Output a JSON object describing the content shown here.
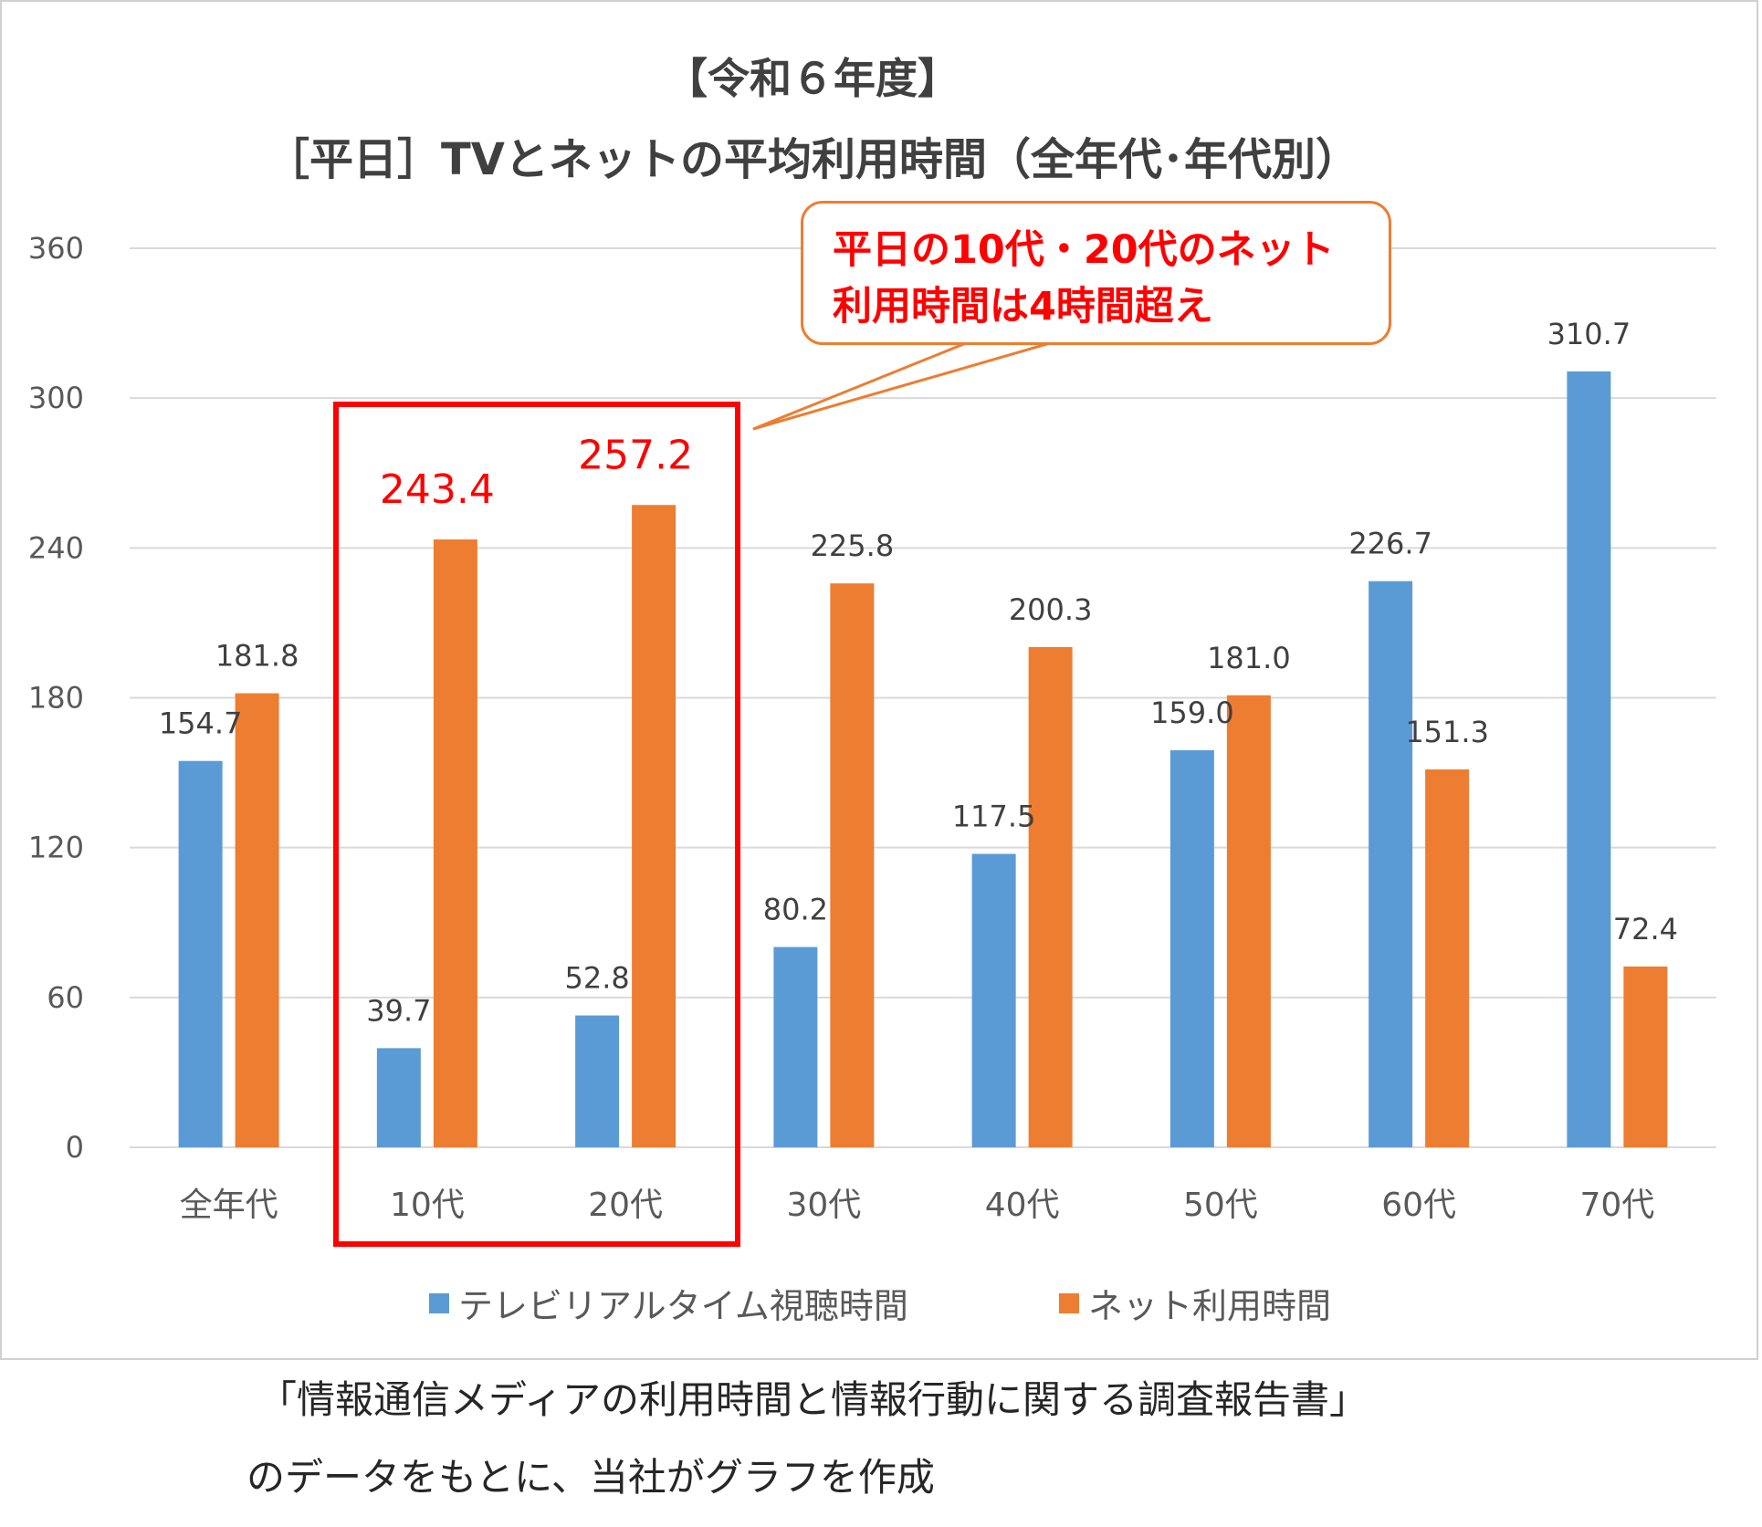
{
  "chart_data": {
    "type": "bar",
    "title": "【令和６年度】",
    "subtitle": "［平日］TVとネットの平均利用時間（全年代･年代別）",
    "categories": [
      "全年代",
      "10代",
      "20代",
      "30代",
      "40代",
      "50代",
      "60代",
      "70代"
    ],
    "series": [
      {
        "name": "テレビリアルタイム視聴時間",
        "color": "#5b9bd5",
        "values": [
          154.7,
          39.7,
          52.8,
          80.2,
          117.5,
          159.0,
          226.7,
          310.7
        ],
        "labels": [
          "154.7",
          "39.7",
          "52.8",
          "80.2",
          "117.5",
          "159.0",
          "226.7",
          "310.7"
        ]
      },
      {
        "name": "ネット利用時間",
        "color": "#ed7d31",
        "values": [
          181.8,
          243.4,
          257.2,
          225.8,
          200.3,
          181.0,
          151.3,
          72.4
        ],
        "labels": [
          "181.8",
          "243.4",
          "257.2",
          "225.8",
          "200.3",
          "181.0",
          "151.3",
          "72.4"
        ]
      }
    ],
    "ylim": [
      0,
      360
    ],
    "yticks": [
      "0",
      "60",
      "120",
      "180",
      "240",
      "300",
      "360"
    ],
    "xlabel": "",
    "ylabel": "",
    "grid": true,
    "legend": "bottom",
    "highlight": {
      "categories": [
        "10代",
        "20代"
      ],
      "color": "#ff0000",
      "callout_lines": [
        "平日の10代・20代のネット",
        "利用時間は4時間超え"
      ],
      "callout_border": "#ed7d31"
    }
  },
  "source_note": {
    "line1": "「情報通信メディアの利用時間と情報行動に関する調査報告書」",
    "line2": "のデータをもとに、当社がグラフを作成"
  }
}
